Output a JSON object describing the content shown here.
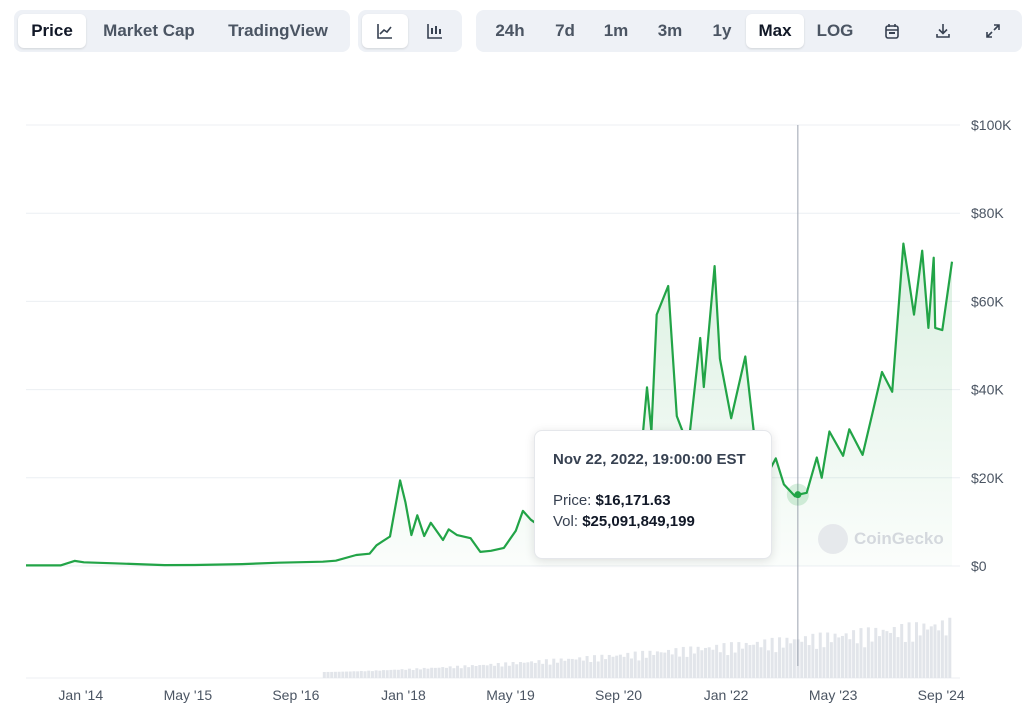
{
  "toolbar": {
    "view_tabs": [
      {
        "label": "Price",
        "active": true
      },
      {
        "label": "Market Cap",
        "active": false
      },
      {
        "label": "TradingView",
        "active": false
      }
    ],
    "chart_types": [
      {
        "icon": "line-chart-icon",
        "active": true
      },
      {
        "icon": "candlestick-chart-icon",
        "active": false
      }
    ],
    "ranges": [
      {
        "label": "24h",
        "active": false
      },
      {
        "label": "7d",
        "active": false
      },
      {
        "label": "1m",
        "active": false
      },
      {
        "label": "3m",
        "active": false
      },
      {
        "label": "1y",
        "active": false
      },
      {
        "label": "Max",
        "active": true
      },
      {
        "label": "LOG",
        "active": false
      }
    ],
    "actions": [
      "calendar-icon",
      "download-icon",
      "expand-icon"
    ]
  },
  "tooltip": {
    "date": "Nov 22, 2022, 19:00:00 EST",
    "price_label": "Price:",
    "price_value": "$16,171.63",
    "vol_label": "Vol:",
    "vol_value": "$25,091,849,199"
  },
  "watermark": "CoinGecko",
  "colors": {
    "line": "#22a447",
    "area": "#22a447",
    "volume": "#e2e5ea",
    "grid": "#eceff3"
  },
  "chart_data": {
    "type": "area",
    "title": "",
    "xlabel": "",
    "ylabel": "",
    "x_ticks": [
      "Jan '14",
      "May '15",
      "Sep '16",
      "Jan '18",
      "May '19",
      "Sep '20",
      "Jan '22",
      "May '23",
      "Sep '24"
    ],
    "y_ticks": [
      "$0",
      "$20K",
      "$40K",
      "$60K",
      "$80K",
      "$100K"
    ],
    "ylim": [
      0,
      100000
    ],
    "xlim": [
      "2013-04-28",
      "2024-10-20"
    ],
    "series": [
      {
        "values": [
          [
            "2013-04-28",
            135
          ],
          [
            "2013-10-01",
            125
          ],
          [
            "2013-12-04",
            1150
          ],
          [
            "2014-01-15",
            850
          ],
          [
            "2014-06-01",
            620
          ],
          [
            "2015-01-15",
            210
          ],
          [
            "2015-06-01",
            230
          ],
          [
            "2016-01-01",
            430
          ],
          [
            "2016-06-15",
            750
          ],
          [
            "2017-01-01",
            970
          ],
          [
            "2017-03-01",
            1200
          ],
          [
            "2017-06-01",
            2500
          ],
          [
            "2017-08-01",
            2800
          ],
          [
            "2017-09-01",
            4700
          ],
          [
            "2017-11-01",
            6700
          ],
          [
            "2017-12-17",
            19400
          ],
          [
            "2018-01-10",
            14500
          ],
          [
            "2018-02-06",
            7000
          ],
          [
            "2018-03-05",
            11500
          ],
          [
            "2018-04-05",
            6800
          ],
          [
            "2018-05-05",
            9800
          ],
          [
            "2018-06-29",
            5900
          ],
          [
            "2018-07-25",
            8300
          ],
          [
            "2018-09-01",
            7000
          ],
          [
            "2018-11-01",
            6300
          ],
          [
            "2018-12-15",
            3200
          ],
          [
            "2019-02-01",
            3450
          ],
          [
            "2019-04-01",
            4100
          ],
          [
            "2019-05-25",
            8000
          ],
          [
            "2019-06-26",
            12500
          ],
          [
            "2019-08-01",
            10500
          ],
          [
            "2019-10-01",
            8300
          ],
          [
            "2019-12-15",
            7200
          ],
          [
            "2020-02-10",
            10200
          ],
          [
            "2020-03-13",
            4900
          ],
          [
            "2020-06-01",
            9500
          ],
          [
            "2020-08-15",
            11900
          ],
          [
            "2020-10-01",
            10700
          ],
          [
            "2020-12-01",
            19000
          ],
          [
            "2021-01-08",
            40500
          ],
          [
            "2021-01-28",
            30500
          ],
          [
            "2021-02-21",
            57000
          ],
          [
            "2021-04-14",
            63500
          ],
          [
            "2021-05-23",
            34000
          ],
          [
            "2021-06-22",
            30000
          ],
          [
            "2021-07-20",
            29800
          ],
          [
            "2021-09-06",
            51700
          ],
          [
            "2021-09-22",
            40600
          ],
          [
            "2021-11-10",
            68000
          ],
          [
            "2021-12-04",
            47000
          ],
          [
            "2022-01-24",
            33500
          ],
          [
            "2022-03-29",
            47500
          ],
          [
            "2022-05-12",
            28000
          ],
          [
            "2022-06-18",
            19000
          ],
          [
            "2022-08-14",
            24400
          ],
          [
            "2022-09-20",
            18500
          ],
          [
            "2022-11-09",
            15800
          ],
          [
            "2022-11-22",
            16171
          ],
          [
            "2023-01-01",
            16600
          ],
          [
            "2023-02-16",
            24600
          ],
          [
            "2023-03-10",
            20000
          ],
          [
            "2023-04-14",
            30500
          ],
          [
            "2023-06-15",
            25000
          ],
          [
            "2023-07-13",
            31000
          ],
          [
            "2023-09-11",
            25200
          ],
          [
            "2023-10-25",
            34500
          ],
          [
            "2023-12-08",
            44000
          ],
          [
            "2024-01-23",
            39500
          ],
          [
            "2024-03-14",
            73100
          ],
          [
            "2024-05-01",
            57000
          ],
          [
            "2024-06-07",
            71500
          ],
          [
            "2024-07-05",
            54000
          ],
          [
            "2024-07-29",
            69900
          ],
          [
            "2024-08-05",
            54000
          ],
          [
            "2024-09-06",
            53500
          ],
          [
            "2024-10-20",
            69000
          ]
        ]
      }
    ],
    "hover_point": [
      "2022-11-22",
      16171.63
    ],
    "grid": true,
    "legend": "none",
    "volume_bars": true
  }
}
